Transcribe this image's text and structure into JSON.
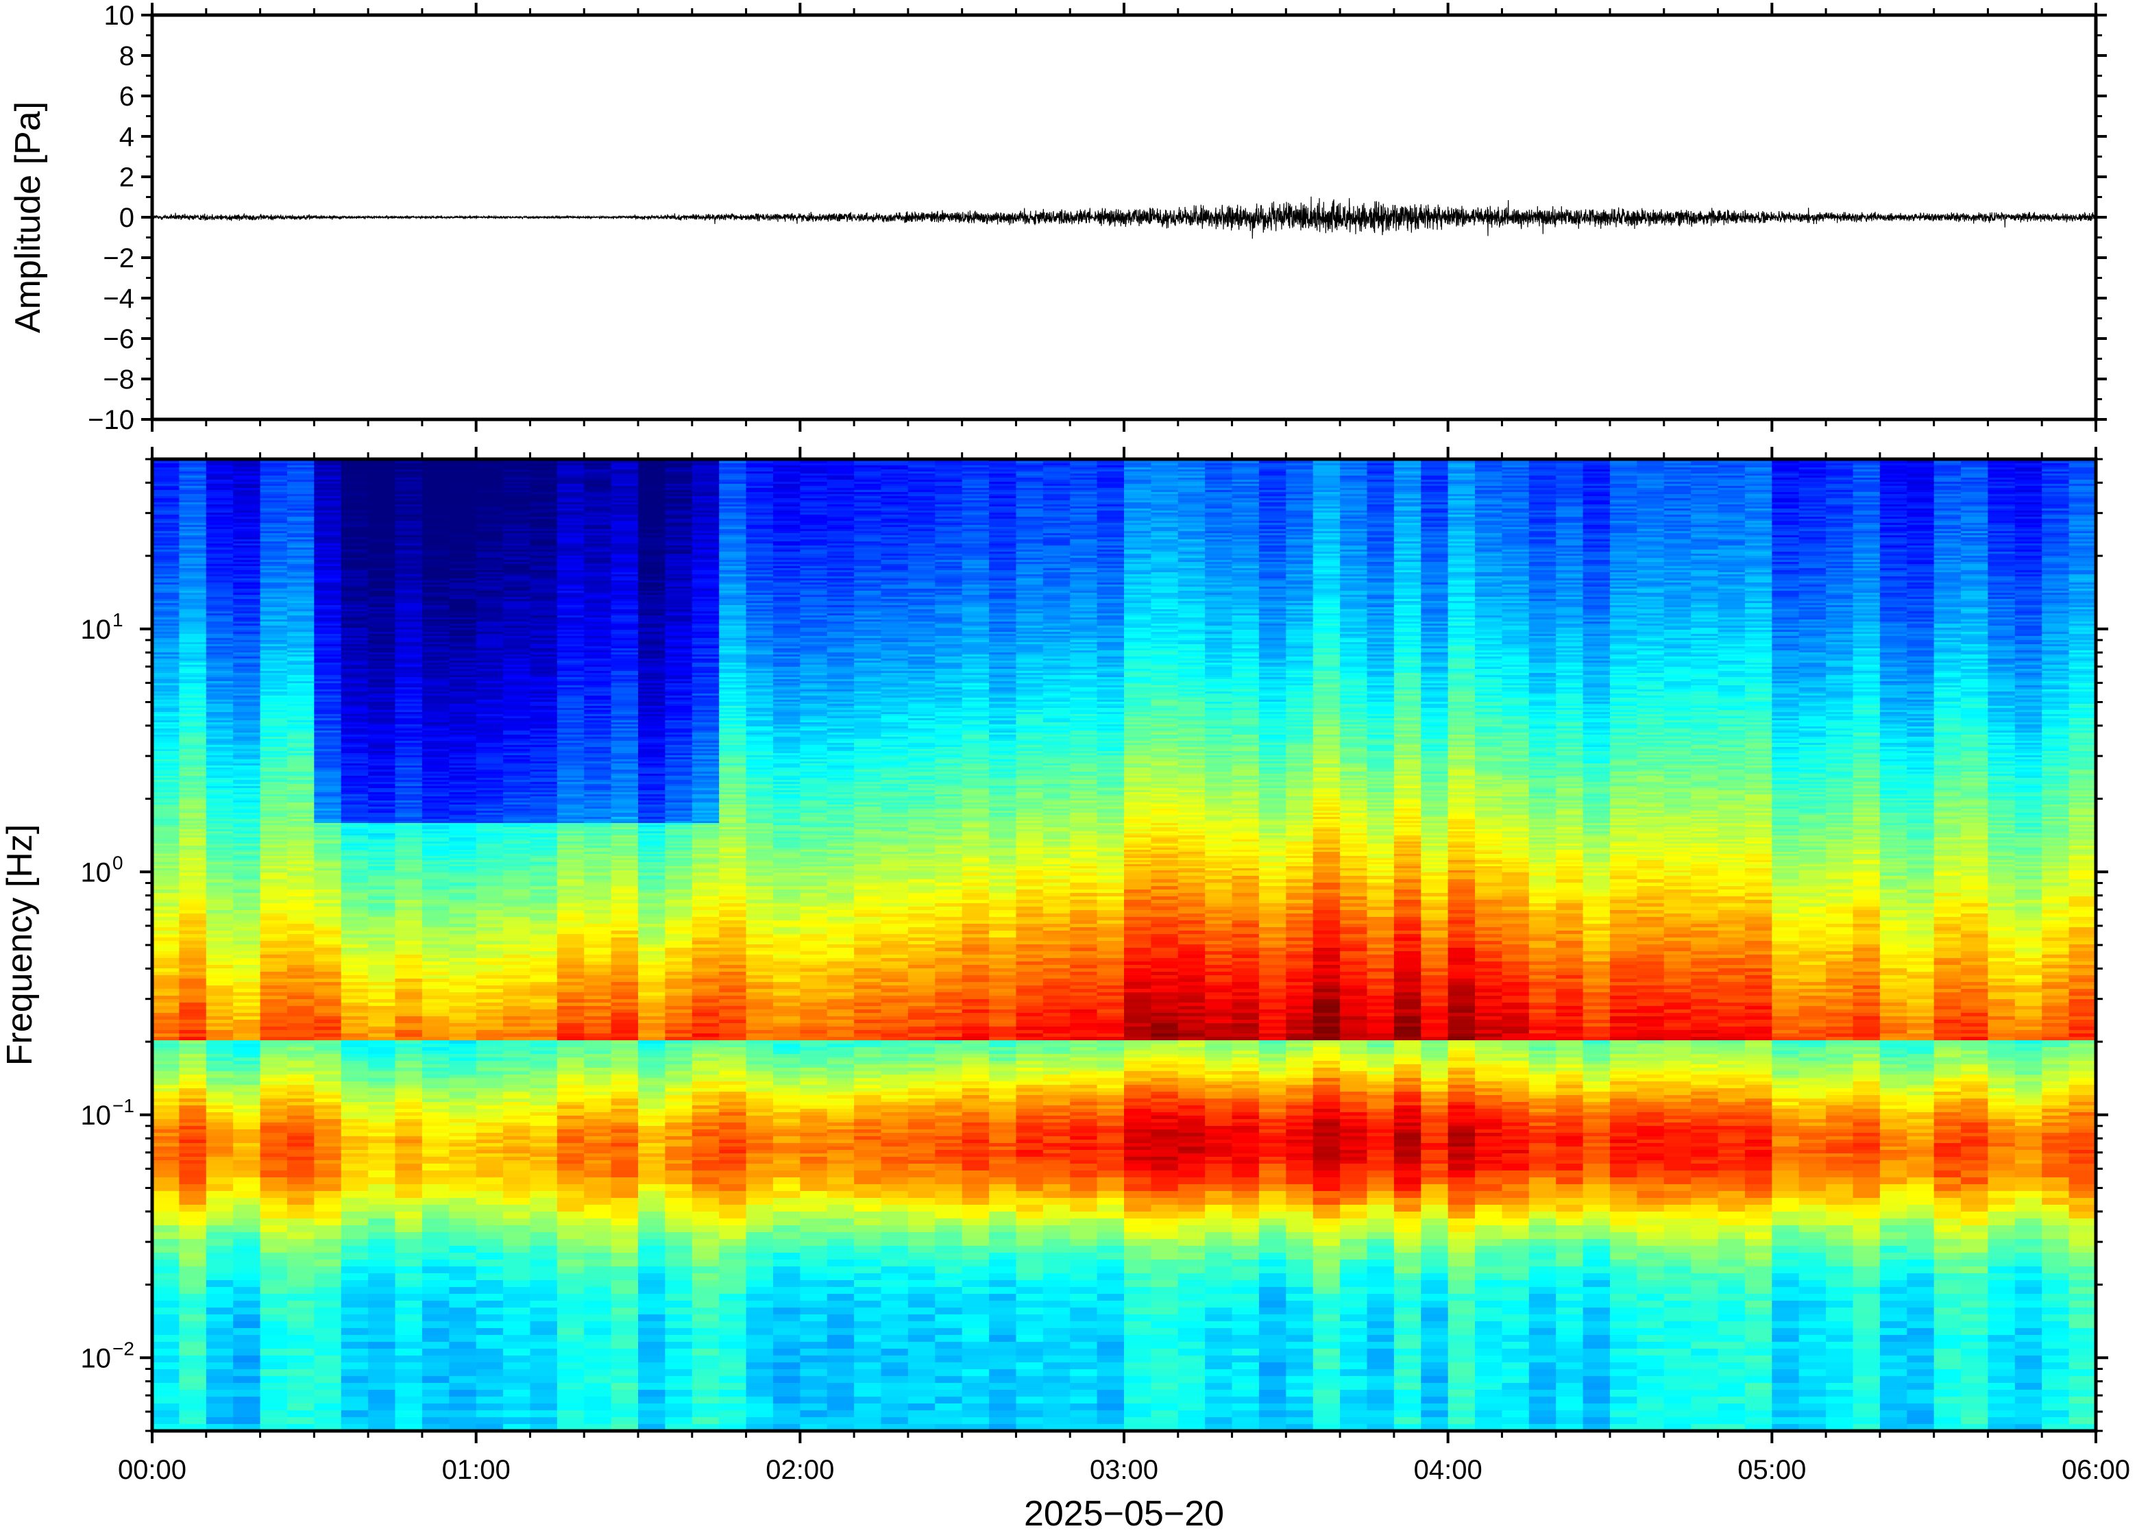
{
  "chart_data": [
    {
      "type": "line",
      "panel": "waveform",
      "title": "",
      "ylabel": "Amplitude [Pa]",
      "xlabel": "",
      "ylim": [
        -10,
        10
      ],
      "yticks": [
        -10,
        -8,
        -6,
        -4,
        -2,
        0,
        2,
        4,
        6,
        8,
        10
      ],
      "ytick_labels": [
        "−10",
        "−8",
        "−6",
        "−4",
        "−2",
        "0",
        "2",
        "4",
        "6",
        "8",
        "10"
      ],
      "x_unit": "hours since 2025-05-20 00:00",
      "xlim": [
        0,
        6
      ],
      "series_color": "#000000",
      "envelope": {
        "x": [
          0.0,
          0.2,
          0.4,
          0.6,
          1.0,
          1.4,
          1.8,
          2.2,
          2.6,
          3.0,
          3.3,
          3.5,
          3.6,
          3.8,
          4.0,
          4.3,
          4.6,
          4.8,
          5.0,
          5.4,
          5.8,
          6.0
        ],
        "peak": [
          0.3,
          0.4,
          0.3,
          0.15,
          0.12,
          0.12,
          0.4,
          0.5,
          0.8,
          1.0,
          1.3,
          1.6,
          1.8,
          1.7,
          1.2,
          1.1,
          1.0,
          0.9,
          0.6,
          0.5,
          0.5,
          0.5
        ]
      }
    },
    {
      "type": "heatmap",
      "panel": "spectrogram",
      "title": "",
      "ylabel": "Frequency [Hz]",
      "xlabel": "2025−05−20",
      "y_scale": "log",
      "ylim": [
        0.005,
        50
      ],
      "yticks": [
        0.01,
        0.1,
        1,
        10
      ],
      "ytick_labels": [
        {
          "base": "10",
          "exp": "−2"
        },
        {
          "base": "10",
          "exp": "−1"
        },
        {
          "base": "10",
          "exp": "0"
        },
        {
          "base": "10",
          "exp": "1"
        }
      ],
      "xlim": [
        0,
        6
      ],
      "xticks": [
        0,
        1,
        2,
        3,
        4,
        5,
        6
      ],
      "xtick_labels": [
        "00:00",
        "01:00",
        "02:00",
        "03:00",
        "04:00",
        "05:00",
        "06:00"
      ],
      "colormap": "jet",
      "grid": false
    }
  ]
}
